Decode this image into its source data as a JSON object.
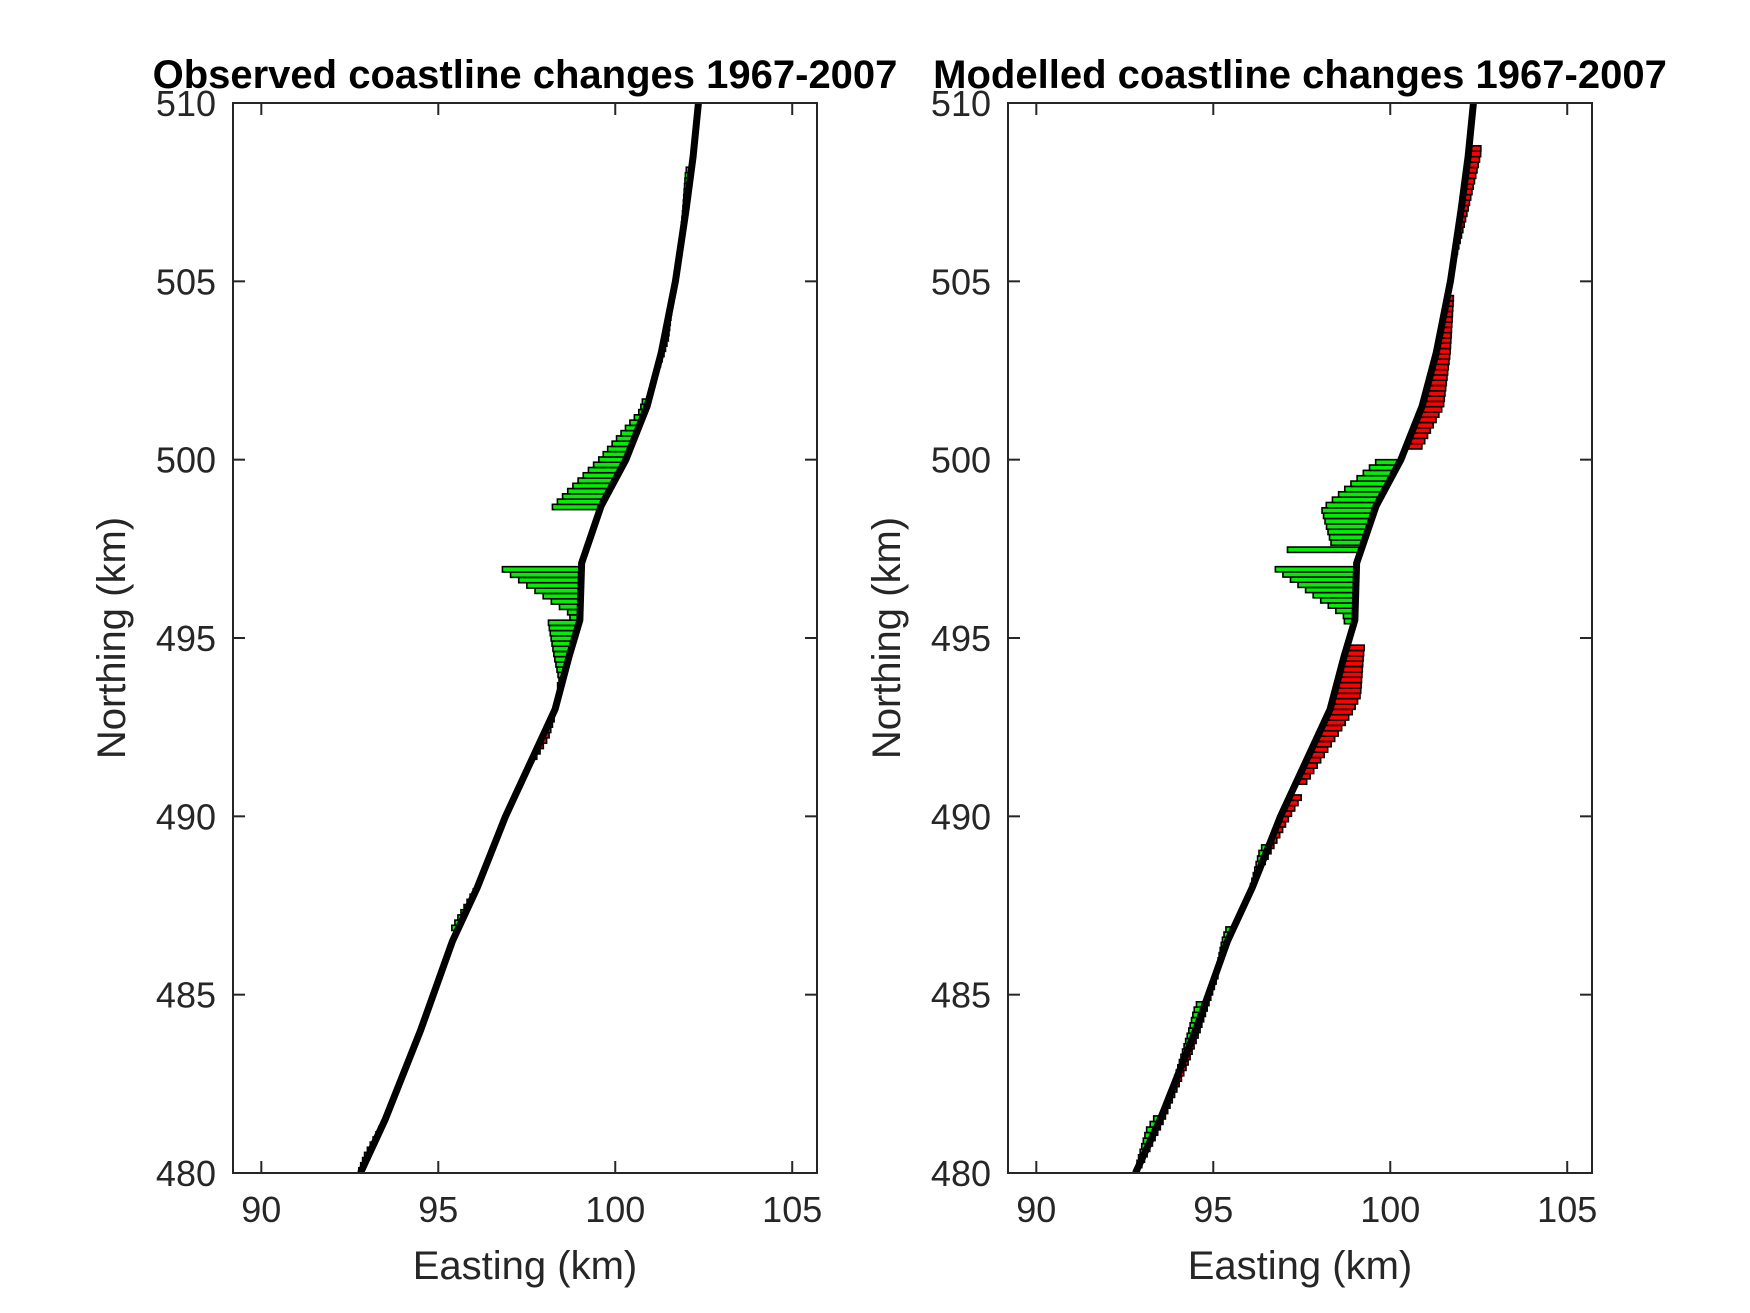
{
  "chart_data": [
    {
      "type": "bar",
      "orientation": "horizontal-transect",
      "title": "Observed coastline changes 1967-2007",
      "xlabel": "Easting (km)",
      "ylabel": "Northing (km)",
      "xlim": [
        89.2,
        105.7
      ],
      "ylim": [
        480,
        510
      ],
      "xticks": [
        "90",
        "95",
        "100",
        "105"
      ],
      "yticks": [
        "480",
        "485",
        "490",
        "495",
        "500",
        "505",
        "510"
      ],
      "grid": false,
      "colors": {
        "accretion": "#00ee00",
        "erosion": "#ff0000",
        "coastline": "#000000",
        "edge": "#000000"
      },
      "coastline": [
        [
          92.8,
          480
        ],
        [
          93.5,
          481.5
        ],
        [
          94.5,
          484
        ],
        [
          95.4,
          486.5
        ],
        [
          96.1,
          488
        ],
        [
          96.9,
          490
        ],
        [
          97.6,
          491.5
        ],
        [
          98.3,
          493
        ],
        [
          98.7,
          494.5
        ],
        [
          99.0,
          495.5
        ],
        [
          99.05,
          497.1
        ],
        [
          99.6,
          498.7
        ],
        [
          100.3,
          500
        ],
        [
          100.9,
          501.5
        ],
        [
          101.3,
          503
        ],
        [
          101.7,
          505
        ],
        [
          102.0,
          507
        ],
        [
          102.2,
          508.5
        ],
        [
          102.35,
          510
        ]
      ],
      "accretion_bars": [
        {
          "n_from": 497.0,
          "n_to": 495.5,
          "max_km": 2.35,
          "tip_n": 497.0
        },
        {
          "n_from": 495.5,
          "n_to": 493.6,
          "max_km": 0.9,
          "tip_n": 495.5
        },
        {
          "n_from": 498.6,
          "n_to": 501.7,
          "max_km": 1.4,
          "tip_n": 498.6
        },
        {
          "n_from": 486.8,
          "n_to": 488.4,
          "max_km": 0.2,
          "tip_n": 486.8
        },
        {
          "n_from": 480.0,
          "n_to": 481.3,
          "max_km": 0.12,
          "tip_n": 480.5
        },
        {
          "n_from": 505.6,
          "n_to": 508.2,
          "max_km": 0.15,
          "tip_n": 508.0
        }
      ],
      "erosion_bars": [
        {
          "n_from": 491.6,
          "n_to": 492.8,
          "max_km": 0.18,
          "tip_n": 492.2
        },
        {
          "n_from": 502.6,
          "n_to": 504.2,
          "max_km": 0.12,
          "tip_n": 503.4
        }
      ]
    },
    {
      "type": "bar",
      "orientation": "horizontal-transect",
      "title": "Modelled coastline changes 1967-2007",
      "xlabel": "Easting (km)",
      "ylabel": "Northing (km)",
      "xlim": [
        89.2,
        105.7
      ],
      "ylim": [
        480,
        510
      ],
      "xticks": [
        "90",
        "95",
        "100",
        "105"
      ],
      "yticks": [
        "480",
        "485",
        "490",
        "495",
        "500",
        "505",
        "510"
      ],
      "grid": false,
      "colors": {
        "accretion": "#00ee00",
        "erosion": "#ff0000",
        "coastline": "#000000",
        "edge": "#000000"
      },
      "coastline": [
        [
          92.8,
          480
        ],
        [
          93.5,
          481.5
        ],
        [
          94.5,
          484
        ],
        [
          95.4,
          486.5
        ],
        [
          96.1,
          488
        ],
        [
          96.9,
          490
        ],
        [
          97.6,
          491.5
        ],
        [
          98.3,
          493
        ],
        [
          98.7,
          494.5
        ],
        [
          99.0,
          495.5
        ],
        [
          99.05,
          497.1
        ],
        [
          99.6,
          498.7
        ],
        [
          100.3,
          500
        ],
        [
          100.9,
          501.5
        ],
        [
          101.3,
          503
        ],
        [
          101.7,
          505
        ],
        [
          102.0,
          507
        ],
        [
          102.2,
          508.5
        ],
        [
          102.35,
          510
        ]
      ],
      "accretion_bars": [
        {
          "n_from": 495.4,
          "n_to": 497.0,
          "max_km": 2.4,
          "tip_n": 497.0
        },
        {
          "n_from": 497.4,
          "n_to": 497.55,
          "max_km": 2.5,
          "tip_n": 497.5
        },
        {
          "n_from": 497.6,
          "n_to": 500.0,
          "max_km": 1.5,
          "tip_n": 498.6
        },
        {
          "n_from": 480.2,
          "n_to": 481.6,
          "max_km": 0.25,
          "tip_n": 481.2
        },
        {
          "n_from": 482.3,
          "n_to": 484.8,
          "max_km": 0.25,
          "tip_n": 484.6
        },
        {
          "n_from": 485.6,
          "n_to": 486.9,
          "max_km": 0.2,
          "tip_n": 486.8
        },
        {
          "n_from": 487.8,
          "n_to": 489.2,
          "max_km": 0.2,
          "tip_n": 489.0
        }
      ],
      "erosion_bars": [
        {
          "n_from": 490.9,
          "n_to": 494.8,
          "max_km": 0.75,
          "tip_n": 493.4
        },
        {
          "n_from": 488.2,
          "n_to": 490.6,
          "max_km": 0.35,
          "tip_n": 490.6
        },
        {
          "n_from": 500.3,
          "n_to": 504.6,
          "max_km": 0.6,
          "tip_n": 501.5
        },
        {
          "n_from": 480.0,
          "n_to": 485.6,
          "max_km": 0.15,
          "tip_n": 483.0
        },
        {
          "n_from": 505.3,
          "n_to": 508.8,
          "max_km": 0.35,
          "tip_n": 508.6
        }
      ]
    }
  ]
}
